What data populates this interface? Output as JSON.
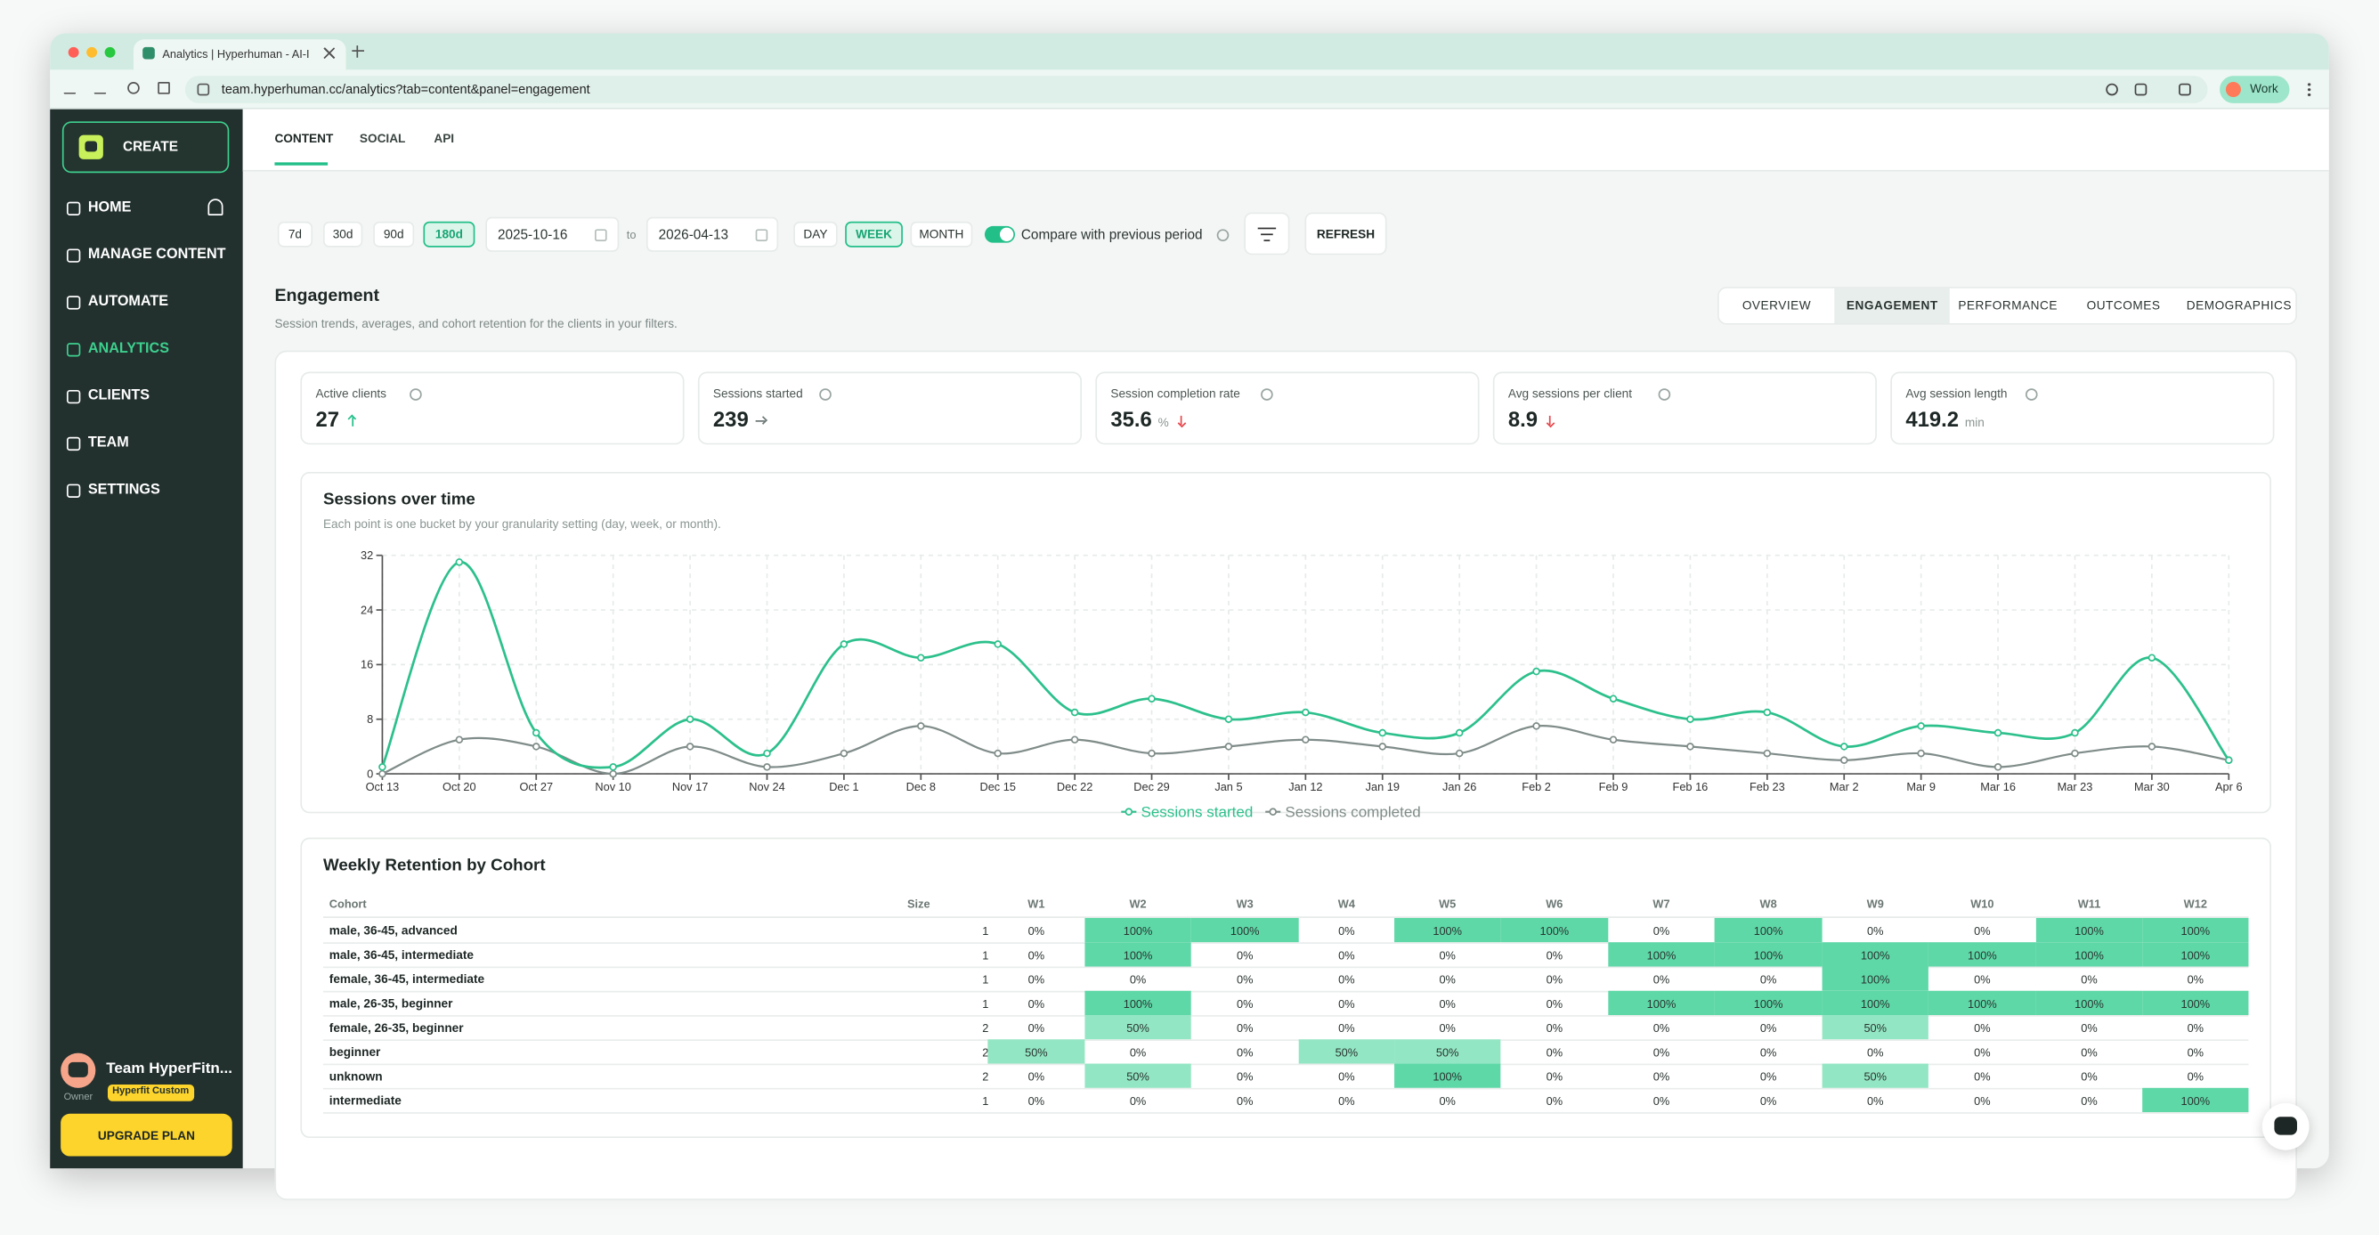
{
  "browser": {
    "tab_title": "Analytics | Hyperhuman - AI-I",
    "url": "team.hyperhuman.cc/analytics?tab=content&panel=engagement",
    "profile": "Work"
  },
  "sidebar": {
    "create": "CREATE",
    "nav": [
      {
        "label": "HOME"
      },
      {
        "label": "MANAGE CONTENT"
      },
      {
        "label": "AUTOMATE"
      },
      {
        "label": "ANALYTICS",
        "active": true
      },
      {
        "label": "CLIENTS"
      },
      {
        "label": "TEAM"
      },
      {
        "label": "SETTINGS"
      }
    ],
    "team_name": "Team HyperFitn...",
    "role": "Owner",
    "plan": "Hyperfit Custom",
    "upgrade": "UPGRADE PLAN"
  },
  "tabs": [
    {
      "label": "CONTENT",
      "active": true
    },
    {
      "label": "SOCIAL"
    },
    {
      "label": "API"
    }
  ],
  "filters": {
    "ranges": [
      {
        "label": "7d"
      },
      {
        "label": "30d"
      },
      {
        "label": "90d"
      },
      {
        "label": "180d",
        "active": true
      }
    ],
    "from": "2025-10-16",
    "to_label": "to",
    "to": "2026-04-13",
    "granularity": [
      {
        "label": "DAY"
      },
      {
        "label": "WEEK",
        "active": true
      },
      {
        "label": "MONTH"
      }
    ],
    "compare": "Compare with previous period",
    "compare_on": true,
    "refresh": "REFRESH"
  },
  "section": {
    "title": "Engagement",
    "subtitle": "Session trends, averages, and cohort retention for the clients in your filters."
  },
  "panels": [
    {
      "label": "OVERVIEW"
    },
    {
      "label": "ENGAGEMENT",
      "active": true
    },
    {
      "label": "PERFORMANCE"
    },
    {
      "label": "OUTCOMES"
    },
    {
      "label": "DEMOGRAPHICS"
    }
  ],
  "kpis": [
    {
      "label": "Active clients",
      "value": 27,
      "trend": "up"
    },
    {
      "label": "Sessions started",
      "value": 239,
      "trend": "flat"
    },
    {
      "label": "Session completion rate",
      "value": 35.6,
      "unit": "%",
      "trend": "down"
    },
    {
      "label": "Avg sessions per client",
      "value": 8.9,
      "trend": "down"
    },
    {
      "label": "Avg session length",
      "value": 419.2,
      "unit": "min"
    }
  ],
  "chart_data": {
    "type": "line",
    "title": "Sessions over time",
    "subtitle": "Each point is one bucket by your granularity setting (day, week, or month).",
    "categories": [
      "Oct 13",
      "Oct 20",
      "Oct 27",
      "Nov 10",
      "Nov 17",
      "Nov 24",
      "Dec 1",
      "Dec 8",
      "Dec 15",
      "Dec 22",
      "Dec 29",
      "Jan 5",
      "Jan 12",
      "Jan 19",
      "Jan 26",
      "Feb 2",
      "Feb 9",
      "Feb 16",
      "Feb 23",
      "Mar 2",
      "Mar 9",
      "Mar 16",
      "Mar 23",
      "Mar 30",
      "Apr 6"
    ],
    "series": [
      {
        "name": "Sessions started",
        "color": "#2cc08c",
        "values": [
          1,
          31,
          6,
          1,
          8,
          3,
          19,
          17,
          19,
          9,
          11,
          8,
          9,
          6,
          6,
          15,
          11,
          8,
          9,
          4,
          7,
          6,
          6,
          17,
          2
        ]
      },
      {
        "name": "Sessions completed",
        "color": "#7f8c89",
        "values": [
          0,
          5,
          4,
          0,
          4,
          1,
          3,
          7,
          3,
          5,
          3,
          4,
          5,
          4,
          3,
          7,
          5,
          4,
          3,
          2,
          3,
          1,
          3,
          4,
          2
        ]
      }
    ],
    "ylim": [
      0,
      32
    ],
    "yticks": [
      0,
      8,
      16,
      24,
      32
    ],
    "grid": true
  },
  "retention": {
    "title": "Weekly Retention by Cohort",
    "columns": [
      "Cohort",
      "Size",
      "W1",
      "W2",
      "W3",
      "W4",
      "W5",
      "W6",
      "W7",
      "W8",
      "W9",
      "W10",
      "W11",
      "W12"
    ],
    "rows": [
      [
        "male, 36-45, advanced",
        1,
        "0%",
        "100%",
        "100%",
        "0%",
        "100%",
        "100%",
        "0%",
        "100%",
        "0%",
        "0%",
        "100%",
        "100%"
      ],
      [
        "male, 36-45, intermediate",
        1,
        "0%",
        "100%",
        "0%",
        "0%",
        "0%",
        "0%",
        "100%",
        "100%",
        "100%",
        "100%",
        "100%",
        "100%"
      ],
      [
        "female, 36-45, intermediate",
        1,
        "0%",
        "0%",
        "0%",
        "0%",
        "0%",
        "0%",
        "0%",
        "0%",
        "100%",
        "0%",
        "0%",
        "0%"
      ],
      [
        "male, 26-35, beginner",
        1,
        "0%",
        "100%",
        "0%",
        "0%",
        "0%",
        "0%",
        "100%",
        "100%",
        "100%",
        "100%",
        "100%",
        "100%"
      ],
      [
        "female, 26-35, beginner",
        2,
        "0%",
        "50%",
        "0%",
        "0%",
        "0%",
        "0%",
        "0%",
        "0%",
        "50%",
        "0%",
        "0%",
        "0%"
      ],
      [
        "beginner",
        2,
        "50%",
        "0%",
        "0%",
        "50%",
        "50%",
        "0%",
        "0%",
        "0%",
        "0%",
        "0%",
        "0%",
        "0%"
      ],
      [
        "unknown",
        2,
        "0%",
        "50%",
        "0%",
        "0%",
        "100%",
        "0%",
        "0%",
        "0%",
        "50%",
        "0%",
        "0%",
        "0%"
      ],
      [
        "intermediate",
        1,
        "0%",
        "0%",
        "0%",
        "0%",
        "0%",
        "0%",
        "0%",
        "0%",
        "0%",
        "0%",
        "0%",
        "100%"
      ]
    ]
  }
}
